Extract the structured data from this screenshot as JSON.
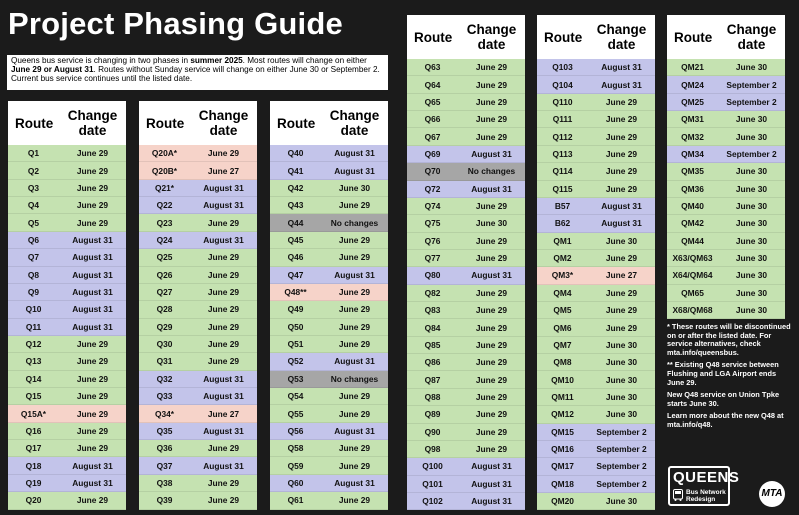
{
  "title": "Project Phasing Guide",
  "intro": {
    "p1": "Queens bus service is changing in two phases in ",
    "p1_bold": "summer 2025",
    "p2": ". Most routes will change on either ",
    "p3_bold": "June 29 or August 31",
    "p4": ". Routes without Sunday service will change on either June 30 or September 2. Current bus service continues until the listed date."
  },
  "headers": {
    "route": "Route",
    "change_date": "Change date"
  },
  "tables": [
    {
      "rows": [
        [
          "Q1",
          "June 29"
        ],
        [
          "Q2",
          "June 29"
        ],
        [
          "Q3",
          "June 29"
        ],
        [
          "Q4",
          "June 29"
        ],
        [
          "Q5",
          "June 29"
        ],
        [
          "Q6",
          "August 31"
        ],
        [
          "Q7",
          "August 31"
        ],
        [
          "Q8",
          "August 31"
        ],
        [
          "Q9",
          "August 31"
        ],
        [
          "Q10",
          "August 31"
        ],
        [
          "Q11",
          "August 31"
        ],
        [
          "Q12",
          "June 29"
        ],
        [
          "Q13",
          "June 29"
        ],
        [
          "Q14",
          "June 29"
        ],
        [
          "Q15",
          "June 29"
        ],
        [
          "Q15A*",
          "June 29"
        ],
        [
          "Q16",
          "June 29"
        ],
        [
          "Q17",
          "June 29"
        ],
        [
          "Q18",
          "August 31"
        ],
        [
          "Q19",
          "August 31"
        ],
        [
          "Q20",
          "June 29"
        ]
      ]
    },
    {
      "rows": [
        [
          "Q20A*",
          "June 29"
        ],
        [
          "Q20B*",
          "June 27"
        ],
        [
          "Q21*",
          "August 31"
        ],
        [
          "Q22",
          "August 31"
        ],
        [
          "Q23",
          "June 29"
        ],
        [
          "Q24",
          "August 31"
        ],
        [
          "Q25",
          "June 29"
        ],
        [
          "Q26",
          "June 29"
        ],
        [
          "Q27",
          "June 29"
        ],
        [
          "Q28",
          "June 29"
        ],
        [
          "Q29",
          "June 29"
        ],
        [
          "Q30",
          "June 29"
        ],
        [
          "Q31",
          "June 29"
        ],
        [
          "Q32",
          "August 31"
        ],
        [
          "Q33",
          "August 31"
        ],
        [
          "Q34*",
          "June 27"
        ],
        [
          "Q35",
          "August 31"
        ],
        [
          "Q36",
          "June 29"
        ],
        [
          "Q37",
          "August 31"
        ],
        [
          "Q38",
          "June 29"
        ],
        [
          "Q39",
          "June 29"
        ]
      ]
    },
    {
      "rows": [
        [
          "Q40",
          "August 31"
        ],
        [
          "Q41",
          "August 31"
        ],
        [
          "Q42",
          "June 30"
        ],
        [
          "Q43",
          "June 29"
        ],
        [
          "Q44",
          "No changes"
        ],
        [
          "Q45",
          "June 29"
        ],
        [
          "Q46",
          "June 29"
        ],
        [
          "Q47",
          "August 31"
        ],
        [
          "Q48**",
          "June 29"
        ],
        [
          "Q49",
          "June 29"
        ],
        [
          "Q50",
          "June 29"
        ],
        [
          "Q51",
          "June 29"
        ],
        [
          "Q52",
          "August 31"
        ],
        [
          "Q53",
          "No changes"
        ],
        [
          "Q54",
          "June 29"
        ],
        [
          "Q55",
          "June 29"
        ],
        [
          "Q56",
          "August 31"
        ],
        [
          "Q58",
          "June 29"
        ],
        [
          "Q59",
          "June 29"
        ],
        [
          "Q60",
          "August 31"
        ],
        [
          "Q61",
          "June 29"
        ]
      ]
    },
    {
      "rows": [
        [
          "Q63",
          "June 29"
        ],
        [
          "Q64",
          "June 29"
        ],
        [
          "Q65",
          "June 29"
        ],
        [
          "Q66",
          "June 29"
        ],
        [
          "Q67",
          "June 29"
        ],
        [
          "Q69",
          "August 31"
        ],
        [
          "Q70",
          "No changes"
        ],
        [
          "Q72",
          "August 31"
        ],
        [
          "Q74",
          "June 29"
        ],
        [
          "Q75",
          "June 30"
        ],
        [
          "Q76",
          "June 29"
        ],
        [
          "Q77",
          "June 29"
        ],
        [
          "Q80",
          "August 31"
        ],
        [
          "Q82",
          "June 29"
        ],
        [
          "Q83",
          "June 29"
        ],
        [
          "Q84",
          "June 29"
        ],
        [
          "Q85",
          "June 29"
        ],
        [
          "Q86",
          "June 29"
        ],
        [
          "Q87",
          "June 29"
        ],
        [
          "Q88",
          "June 29"
        ],
        [
          "Q89",
          "June 29"
        ],
        [
          "Q90",
          "June 29"
        ],
        [
          "Q98",
          "June 29"
        ],
        [
          "Q100",
          "August 31"
        ],
        [
          "Q101",
          "August 31"
        ],
        [
          "Q102",
          "August 31"
        ]
      ]
    },
    {
      "rows": [
        [
          "Q103",
          "August 31"
        ],
        [
          "Q104",
          "August 31"
        ],
        [
          "Q110",
          "June 29"
        ],
        [
          "Q111",
          "June 29"
        ],
        [
          "Q112",
          "June 29"
        ],
        [
          "Q113",
          "June 29"
        ],
        [
          "Q114",
          "June 29"
        ],
        [
          "Q115",
          "June 29"
        ],
        [
          "B57",
          "August 31"
        ],
        [
          "B62",
          "August 31"
        ],
        [
          "QM1",
          "June 30"
        ],
        [
          "QM2",
          "June 29"
        ],
        [
          "QM3*",
          "June 27"
        ],
        [
          "QM4",
          "June 29"
        ],
        [
          "QM5",
          "June 29"
        ],
        [
          "QM6",
          "June 29"
        ],
        [
          "QM7",
          "June 30"
        ],
        [
          "QM8",
          "June 30"
        ],
        [
          "QM10",
          "June 30"
        ],
        [
          "QM11",
          "June 30"
        ],
        [
          "QM12",
          "June 30"
        ],
        [
          "QM15",
          "September 2"
        ],
        [
          "QM16",
          "September 2"
        ],
        [
          "QM17",
          "September 2"
        ],
        [
          "QM18",
          "September 2"
        ],
        [
          "QM20",
          "June 30"
        ]
      ]
    },
    {
      "rows": [
        [
          "QM21",
          "June 30"
        ],
        [
          "QM24",
          "September 2"
        ],
        [
          "QM25",
          "September 2"
        ],
        [
          "QM31",
          "June 30"
        ],
        [
          "QM32",
          "June 30"
        ],
        [
          "QM34",
          "September 2"
        ],
        [
          "QM35",
          "June 30"
        ],
        [
          "QM36",
          "June 30"
        ],
        [
          "QM40",
          "June 30"
        ],
        [
          "QM42",
          "June 30"
        ],
        [
          "QM44",
          "June 30"
        ],
        [
          "X63/QM63",
          "June 30"
        ],
        [
          "X64/QM64",
          "June 30"
        ],
        [
          "QM65",
          "June 30"
        ],
        [
          "X68/QM68",
          "June 30"
        ]
      ]
    }
  ],
  "notes": {
    "n1": "* These routes will be discontinued on or after the listed date. For service alternatives, check mta.info/queensbus.",
    "n2": "** Existing Q48 service between Flushing and LGA Airport ends June 29.",
    "n3": "New Q48 service on Union Tpke starts June 30.",
    "n4": "Learn more about the new Q48 at mta.info/q48."
  },
  "logo": {
    "queens": "QUEENS",
    "line1": "Bus Network",
    "line2": "Redesign"
  },
  "mta": "MTA",
  "colors": {
    "june": "#c5e2b1",
    "august_sept": "#c3c4ea",
    "no_changes": "#a6a6a6",
    "discontinued": "#f6d3c9",
    "background": "#1b1b1b"
  }
}
